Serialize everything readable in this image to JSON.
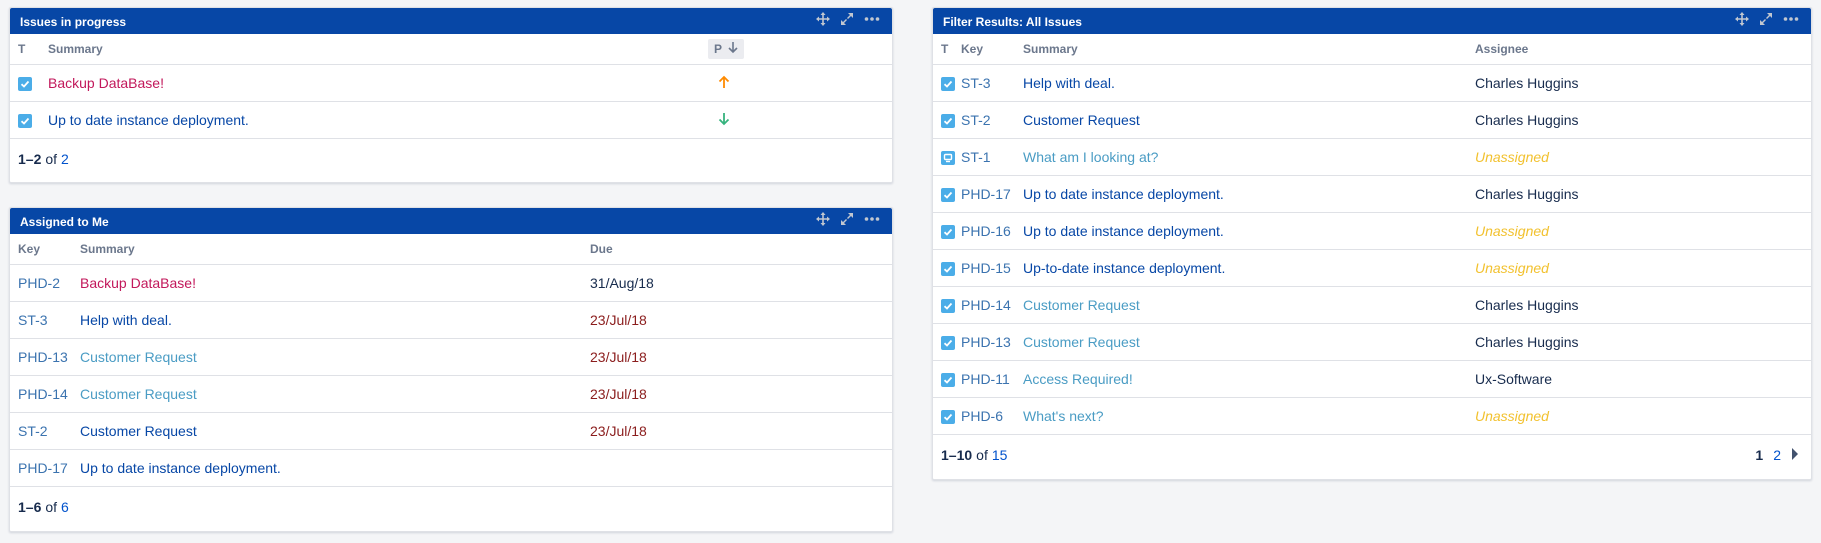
{
  "colors": {
    "header_blue": "#0747a6",
    "check_blue": "#4bade8",
    "priority_up": "#ff8b00",
    "priority_down": "#36b37e",
    "unassigned": "#f2c12e"
  },
  "icons": {
    "move": "move-icon",
    "expand": "expand-icon",
    "more": "more-icon",
    "issue_type": "task-check-icon",
    "support_type": "support-icon"
  },
  "in_progress": {
    "title": "Issues in progress",
    "headers": {
      "type": "T",
      "summary": "Summary",
      "priority": "P"
    },
    "rows": [
      {
        "summary": "Backup DataBase!",
        "priority": "up"
      },
      {
        "summary": "Up to date instance deployment.",
        "priority": "down"
      }
    ],
    "footer": {
      "range": "1–2",
      "of": "of",
      "total": "2"
    }
  },
  "assigned": {
    "title": "Assigned to Me",
    "headers": {
      "key": "Key",
      "summary": "Summary",
      "due": "Due"
    },
    "rows": [
      {
        "key": "PHD-2",
        "summary": "Backup DataBase!",
        "due": "31/Aug/18"
      },
      {
        "key": "ST-3",
        "summary": "Help with deal.",
        "due": "23/Jul/18"
      },
      {
        "key": "PHD-13",
        "summary": "Customer Request",
        "due": "23/Jul/18"
      },
      {
        "key": "PHD-14",
        "summary": "Customer Request",
        "due": "23/Jul/18"
      },
      {
        "key": "ST-2",
        "summary": "Customer Request",
        "due": "23/Jul/18"
      },
      {
        "key": "PHD-17",
        "summary": "Up to date instance deployment.",
        "due": ""
      }
    ],
    "footer": {
      "range": "1–6",
      "of": "of",
      "total": "6"
    }
  },
  "filter": {
    "title": "Filter Results: All Issues",
    "headers": {
      "type": "T",
      "key": "Key",
      "summary": "Summary",
      "assignee": "Assignee"
    },
    "rows": [
      {
        "key": "ST-3",
        "summary": "Help with deal.",
        "assignee": "Charles Huggins"
      },
      {
        "key": "ST-2",
        "summary": "Customer Request",
        "assignee": "Charles Huggins"
      },
      {
        "key": "ST-1",
        "summary": "What am I looking at?",
        "assignee": "Unassigned"
      },
      {
        "key": "PHD-17",
        "summary": "Up to date instance deployment.",
        "assignee": "Charles Huggins"
      },
      {
        "key": "PHD-16",
        "summary": "Up to date instance deployment.",
        "assignee": "Unassigned"
      },
      {
        "key": "PHD-15",
        "summary": "Up-to-date instance deployment.",
        "assignee": "Unassigned"
      },
      {
        "key": "PHD-14",
        "summary": "Customer Request",
        "assignee": "Charles Huggins"
      },
      {
        "key": "PHD-13",
        "summary": "Customer Request",
        "assignee": "Charles Huggins"
      },
      {
        "key": "PHD-11",
        "summary": "Access Required!",
        "assignee": "Ux-Software"
      },
      {
        "key": "PHD-6",
        "summary": "What's next?",
        "assignee": "Unassigned"
      }
    ],
    "footer": {
      "range": "1–10",
      "of": "of",
      "total": "15"
    },
    "pager": {
      "current": "1",
      "next": "2"
    }
  }
}
